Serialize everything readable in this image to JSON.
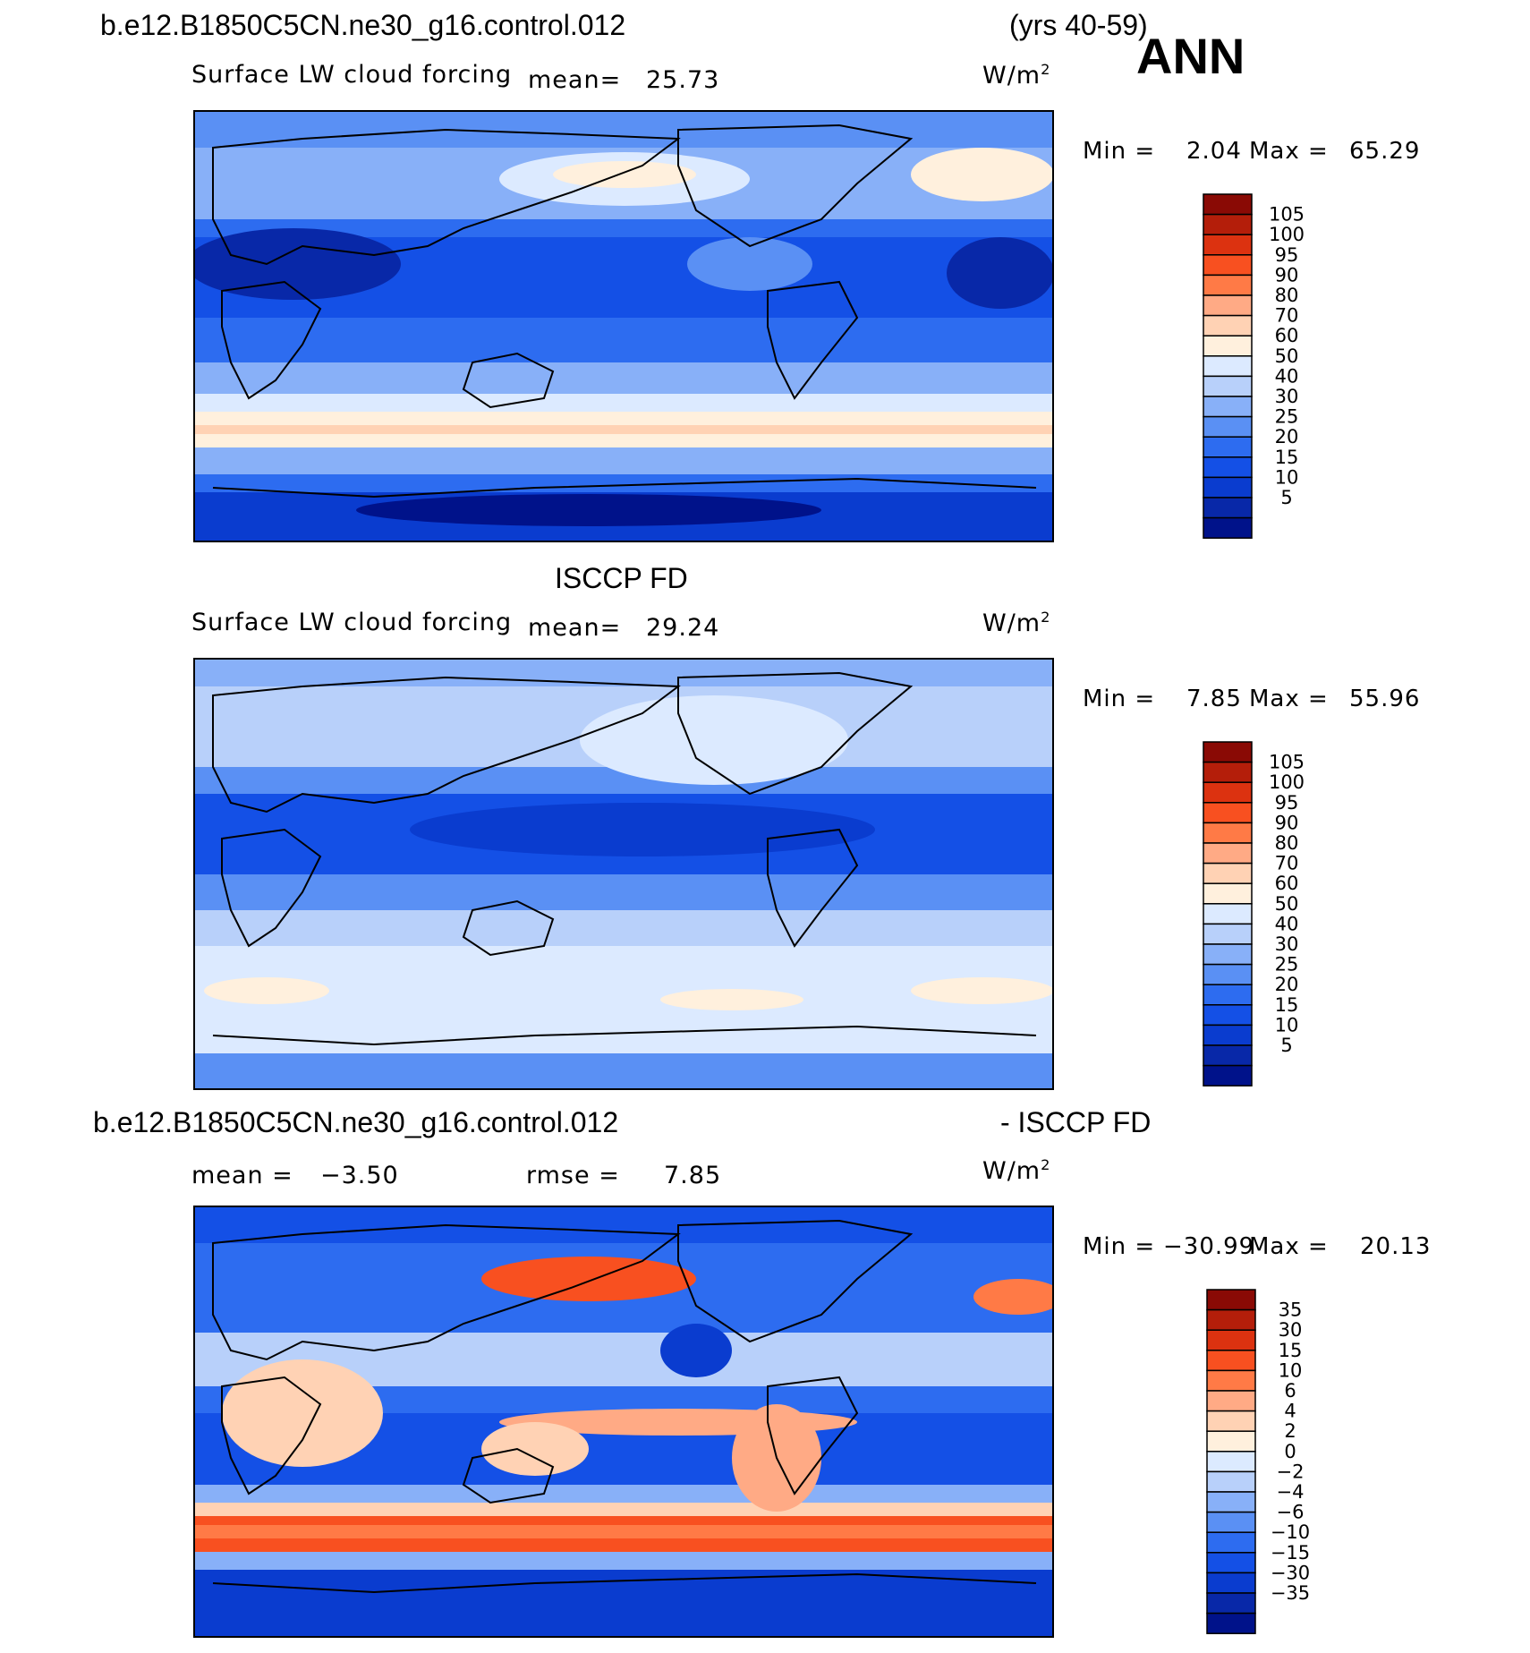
{
  "header": {
    "case_name": "b.e12.B1850C5CN.ne30_g16.control.012",
    "years": "(yrs 40-59)",
    "season": "ANN"
  },
  "panels": [
    {
      "title": "",
      "subtitle": "Surface LW cloud forcing",
      "mean_label": "mean=",
      "mean_value": "25.73",
      "units": "W/m",
      "units_sup": "2",
      "min_label": "Min  =",
      "min_value": "2.04",
      "max_label": "Max  =",
      "max_value": "65.29",
      "colorbar": {
        "levels": [
          "105",
          "100",
          "95",
          "90",
          "80",
          "70",
          "60",
          "50",
          "40",
          "30",
          "25",
          "20",
          "15",
          "10",
          "5"
        ],
        "colors": [
          "#00128a",
          "#0828a8",
          "#0a3ccf",
          "#1450e6",
          "#2d6cf0",
          "#5a90f4",
          "#88b0f8",
          "#b8d0fa",
          "#dceaff",
          "#fff0dd",
          "#ffd2b4",
          "#ffaa85",
          "#ff7a46",
          "#f85020",
          "#dc3210",
          "#b41e0a",
          "#8a0a05"
        ]
      }
    },
    {
      "title": "ISCCP FD",
      "subtitle": "Surface LW cloud forcing",
      "mean_label": "mean=",
      "mean_value": "29.24",
      "units": "W/m",
      "units_sup": "2",
      "min_label": "Min  =",
      "min_value": "7.85",
      "max_label": "Max  =",
      "max_value": "55.96",
      "colorbar": {
        "levels": [
          "105",
          "100",
          "95",
          "90",
          "80",
          "70",
          "60",
          "50",
          "40",
          "30",
          "25",
          "20",
          "15",
          "10",
          "5"
        ],
        "colors": [
          "#00128a",
          "#0828a8",
          "#0a3ccf",
          "#1450e6",
          "#2d6cf0",
          "#5a90f4",
          "#88b0f8",
          "#b8d0fa",
          "#dceaff",
          "#fff0dd",
          "#ffd2b4",
          "#ffaa85",
          "#ff7a46",
          "#f85020",
          "#dc3210",
          "#b41e0a",
          "#8a0a05"
        ]
      }
    },
    {
      "title_left": "b.e12.B1850C5CN.ne30_g16.control.012",
      "title_right": "- ISCCP FD",
      "mean_label": "mean  =",
      "mean_value": "−3.50",
      "rmse_label": "rmse  =",
      "rmse_value": "7.85",
      "units": "W/m",
      "units_sup": "2",
      "min_label": "Min  =",
      "min_value": "−30.99",
      "max_label": "Max  =",
      "max_value": "20.13",
      "colorbar": {
        "levels": [
          "35",
          "30",
          "15",
          "10",
          "6",
          "4",
          "2",
          "0",
          "−2",
          "−4",
          "−6",
          "−10",
          "−15",
          "−30",
          "−35"
        ],
        "colors": [
          "#00128a",
          "#0828a8",
          "#0a3ccf",
          "#1450e6",
          "#2d6cf0",
          "#5a90f4",
          "#88b0f8",
          "#b8d0fa",
          "#dceaff",
          "#fff0dd",
          "#ffd2b4",
          "#ffaa85",
          "#ff7a46",
          "#f85020",
          "#dc3210",
          "#b41e0a",
          "#8a0a05"
        ]
      }
    }
  ]
}
